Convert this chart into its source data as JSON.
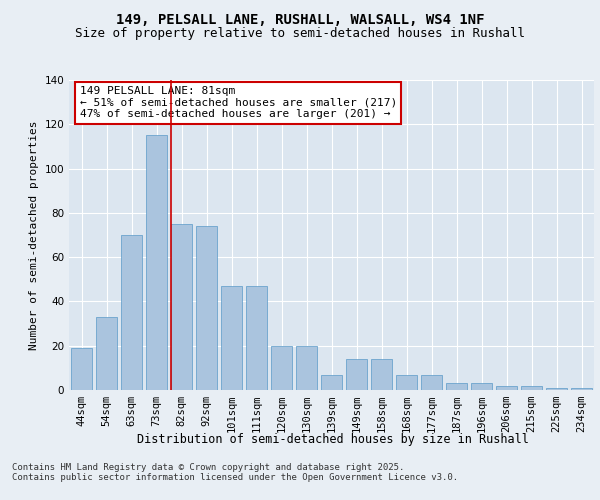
{
  "title1": "149, PELSALL LANE, RUSHALL, WALSALL, WS4 1NF",
  "title2": "Size of property relative to semi-detached houses in Rushall",
  "xlabel": "Distribution of semi-detached houses by size in Rushall",
  "ylabel": "Number of semi-detached properties",
  "categories": [
    "44sqm",
    "54sqm",
    "63sqm",
    "73sqm",
    "82sqm",
    "92sqm",
    "101sqm",
    "111sqm",
    "120sqm",
    "130sqm",
    "139sqm",
    "149sqm",
    "158sqm",
    "168sqm",
    "177sqm",
    "187sqm",
    "196sqm",
    "206sqm",
    "215sqm",
    "225sqm",
    "234sqm"
  ],
  "values": [
    19,
    33,
    70,
    115,
    75,
    74,
    47,
    47,
    20,
    20,
    7,
    14,
    14,
    7,
    7,
    3,
    3,
    2,
    2,
    1,
    1
  ],
  "bar_color": "#aac4de",
  "bar_edge_color": "#5a9ac8",
  "highlight_index": 4,
  "highlight_line_color": "#cc0000",
  "annotation_text": "149 PELSALL LANE: 81sqm\n← 51% of semi-detached houses are smaller (217)\n47% of semi-detached houses are larger (201) →",
  "annotation_box_color": "#ffffff",
  "annotation_box_edge_color": "#cc0000",
  "bg_color": "#e8eef4",
  "plot_bg_color": "#dce6f0",
  "grid_color": "#ffffff",
  "ylim": [
    0,
    140
  ],
  "yticks": [
    0,
    20,
    40,
    60,
    80,
    100,
    120,
    140
  ],
  "footnote": "Contains HM Land Registry data © Crown copyright and database right 2025.\nContains public sector information licensed under the Open Government Licence v3.0.",
  "title1_fontsize": 10,
  "title2_fontsize": 9,
  "xlabel_fontsize": 8.5,
  "ylabel_fontsize": 8,
  "tick_fontsize": 7.5,
  "annotation_fontsize": 8,
  "footnote_fontsize": 6.5
}
